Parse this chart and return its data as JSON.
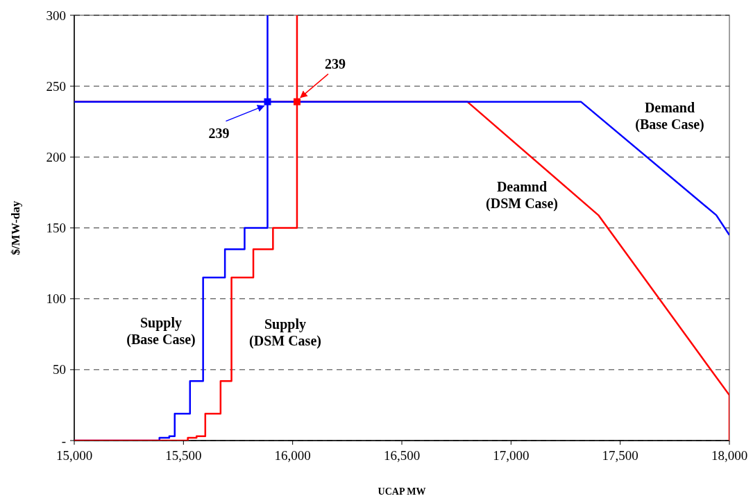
{
  "chart_data": {
    "type": "line",
    "xlabel": "UCAP MW",
    "ylabel": "$/MW-day",
    "xlim": [
      15000,
      18000
    ],
    "ylim": [
      0,
      300
    ],
    "xticks": [
      {
        "value": 15000,
        "label": "15,000"
      },
      {
        "value": 15500,
        "label": "15,500"
      },
      {
        "value": 16000,
        "label": "16,000"
      },
      {
        "value": 16500,
        "label": "16,500"
      },
      {
        "value": 17000,
        "label": "17,000"
      },
      {
        "value": 17500,
        "label": "17,500"
      },
      {
        "value": 18000,
        "label": "18,000"
      }
    ],
    "yticks": [
      {
        "value": 0,
        "label": "-"
      },
      50,
      100,
      150,
      200,
      250,
      300
    ],
    "grid": "y",
    "legend": false,
    "series": [
      {
        "name": "Supply (Base Case)",
        "type": "step",
        "color": "#0000ff",
        "x": [
          15000,
          15390,
          15435,
          15460,
          15530,
          15590,
          15690,
          15780,
          15885
        ],
        "values": [
          0,
          2,
          3,
          19,
          42,
          115,
          135,
          150,
          300
        ]
      },
      {
        "name": "Supply (DSM Case)",
        "type": "step",
        "color": "#ff0000",
        "x": [
          15000,
          15520,
          15560,
          15600,
          15670,
          15720,
          15820,
          15910,
          16020
        ],
        "values": [
          0,
          2,
          3,
          19,
          42,
          115,
          135,
          150,
          300
        ]
      },
      {
        "name": "Deamnd (DSM Case)",
        "color": "#ff0000",
        "x": [
          15000,
          16800,
          17400,
          18000,
          18000
        ],
        "values": [
          239,
          239,
          159,
          32,
          0
        ]
      },
      {
        "name": "Demand (Base Case)",
        "color": "#0000ff",
        "x": [
          15000,
          17320,
          17940,
          18000
        ],
        "values": [
          239,
          239,
          159,
          145
        ]
      },
      {
        "type": "scatter",
        "marker": "square",
        "color": "#0000ff",
        "x": [
          15885
        ],
        "values": [
          239
        ]
      },
      {
        "type": "scatter",
        "marker": "square",
        "color": "#ff0000",
        "x": [
          16020
        ],
        "values": [
          239
        ]
      }
    ],
    "annotations": [
      {
        "text": "239",
        "x": 15885,
        "y": 239
      },
      {
        "text": "239",
        "x": 16020,
        "y": 239
      }
    ]
  }
}
